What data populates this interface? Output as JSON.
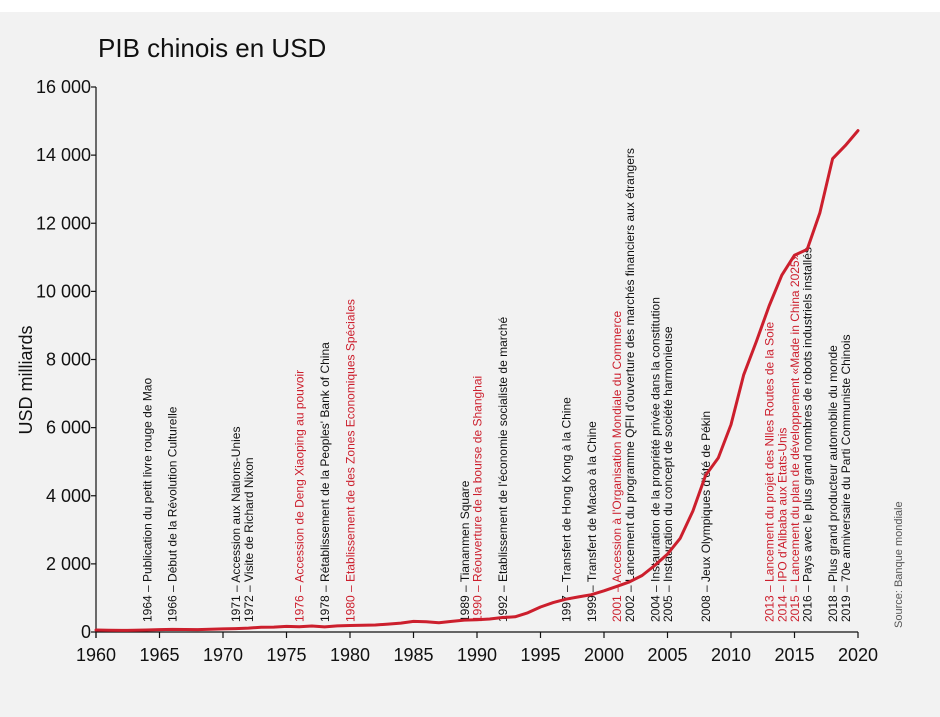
{
  "chart_data": {
    "type": "line",
    "title": "PIB chinois en USD",
    "ylabel": "USD milliards",
    "xlabel": "",
    "source": "Source: Banque mondiale",
    "xlim": [
      1960,
      2020
    ],
    "ylim": [
      0,
      16000
    ],
    "x_ticks": [
      "1960",
      "1965",
      "1970",
      "1975",
      "1980",
      "1985",
      "1990",
      "1995",
      "2000",
      "2005",
      "2010",
      "2015",
      "2020"
    ],
    "y_ticks": [
      {
        "value": 0,
        "label": "0"
      },
      {
        "value": 2000,
        "label": "2 000"
      },
      {
        "value": 4000,
        "label": "4 000"
      },
      {
        "value": 6000,
        "label": "6 000"
      },
      {
        "value": 8000,
        "label": "8 000"
      },
      {
        "value": 10000,
        "label": "10 000"
      },
      {
        "value": 12000,
        "label": "12 000"
      },
      {
        "value": 14000,
        "label": "14 000"
      },
      {
        "value": 16000,
        "label": "16 000"
      }
    ],
    "grid": false,
    "colors": {
      "line": "#cc1f2d",
      "annotation_red": "#cc1f2d",
      "annotation_black": "#111111",
      "axis": "#111111"
    },
    "series": [
      {
        "x": [
          1960,
          1961,
          1962,
          1963,
          1964,
          1965,
          1966,
          1967,
          1968,
          1969,
          1970,
          1971,
          1972,
          1973,
          1974,
          1975,
          1976,
          1977,
          1978,
          1979,
          1980,
          1981,
          1982,
          1983,
          1984,
          1985,
          1986,
          1987,
          1988,
          1989,
          1990,
          1991,
          1992,
          1993,
          1994,
          1995,
          1996,
          1997,
          1998,
          1999,
          2000,
          2001,
          2002,
          2003,
          2004,
          2005,
          2006,
          2007,
          2008,
          2009,
          2010,
          2011,
          2012,
          2013,
          2014,
          2015,
          2016,
          2017,
          2018,
          2019,
          2020
        ],
        "values": [
          60,
          50,
          47,
          50,
          59,
          70,
          76,
          72,
          70,
          79,
          92,
          100,
          114,
          139,
          144,
          163,
          154,
          175,
          150,
          179,
          191,
          196,
          205,
          231,
          260,
          310,
          301,
          274,
          312,
          348,
          361,
          383,
          427,
          445,
          564,
          734,
          863,
          962,
          1029,
          1094,
          1211,
          1339,
          1471,
          1660,
          1955,
          2286,
          2752,
          3552,
          4598,
          5110,
          6088,
          7552,
          8532,
          9570,
          10476,
          11062,
          11233,
          12310,
          13895,
          14280,
          14720
        ]
      }
    ],
    "annotations": [
      {
        "year": 1964,
        "text": "1964 – Publication du petit livre rouge de Mao",
        "color": "black"
      },
      {
        "year": 1966,
        "text": "1966 – Début de la Révolution Culturelle",
        "color": "black"
      },
      {
        "year": 1971,
        "text": "1971 – Accession aux Nations-Unies",
        "color": "black"
      },
      {
        "year": 1972,
        "text": "1972 – Visite de Richard Nixon",
        "color": "black"
      },
      {
        "year": 1976,
        "text": "1976 – Accession de Deng Xiaoping au pouvoir",
        "color": "red"
      },
      {
        "year": 1978,
        "text": "1978 – Rétablissement de la Peoples' Bank of China",
        "color": "black"
      },
      {
        "year": 1980,
        "text": "1980 – Etablissement de des Zones Economiques Spéciales",
        "color": "red"
      },
      {
        "year": 1989,
        "text": "1989 – Tiananmen Square",
        "color": "black"
      },
      {
        "year": 1990,
        "text": "1990 – Réouverture de la bourse de Shanghai",
        "color": "red"
      },
      {
        "year": 1992,
        "text": "1992 – Etablissement de l'économie socialiste de marché",
        "color": "black"
      },
      {
        "year": 1997,
        "text": "1997 – Transfert de Hong Kong à la Chine",
        "color": "black"
      },
      {
        "year": 1999,
        "text": "1999 – Transfert de Macao à la Chine",
        "color": "black"
      },
      {
        "year": 2001,
        "text": "2001 – Accession à l'Organisation Mondiale du Commerce",
        "color": "red"
      },
      {
        "year": 2002,
        "text": "2002 – Lancement du programme QFII d'ouverture des marchés financiers aux étrangers",
        "color": "black"
      },
      {
        "year": 2004,
        "text": "2004 – Instauration de la propriété privée dans la constitution",
        "color": "black"
      },
      {
        "year": 2005,
        "text": "2005 – Instauration du concept de société harmonieuse",
        "color": "black"
      },
      {
        "year": 2008,
        "text": "2008 – Jeux Olympiques d'été de Pékin",
        "color": "black"
      },
      {
        "year": 2013,
        "text": "2013 – Lancement du projet des Nlles Routes de la Soie",
        "color": "red"
      },
      {
        "year": 2014,
        "text": "2014 – IPO d'Alibaba aux Etats-Unis",
        "color": "red"
      },
      {
        "year": 2015,
        "text": "2015 – Lancement du plan de développement «Made in China 2025»",
        "color": "red"
      },
      {
        "year": 2016,
        "text": "2016 – Pays avec le plus grand nombres de robots industriels installés",
        "color": "black"
      },
      {
        "year": 2018,
        "text": "2018 – Plus grand producteur automobile du monde",
        "color": "black"
      },
      {
        "year": 2019,
        "text": "2019 – 70e anniversaire du Parti Communiste Chinois",
        "color": "black"
      }
    ]
  }
}
